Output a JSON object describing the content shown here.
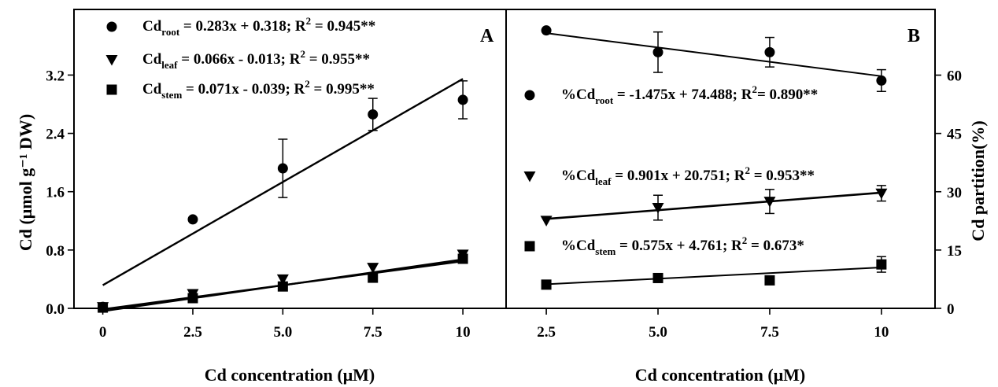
{
  "chart_data": [
    {
      "type": "scatter",
      "panel_letter": "A",
      "xlabel": "Cd concentration (μM)",
      "ylabel": "Cd (μmol g⁻¹ DW)",
      "xlim": [
        -0.8,
        11.2
      ],
      "ylim": [
        0,
        4.1
      ],
      "x_ticks": [
        0,
        2.5,
        5,
        7.5,
        10
      ],
      "x_tick_labels": [
        "0",
        "2.5",
        "5.0",
        "7.5",
        "10"
      ],
      "y_ticks": [
        0,
        0.8,
        1.6,
        2.4,
        3.2
      ],
      "y_tick_labels": [
        "0.0",
        "0.8",
        "1.6",
        "2.4",
        "3.2"
      ],
      "grid": false,
      "legend_position": "top-left",
      "series": [
        {
          "marker": "circle",
          "x": [
            0,
            2.5,
            5,
            7.5,
            10
          ],
          "y": [
            0.02,
            1.22,
            1.92,
            2.66,
            2.86
          ],
          "err": [
            0,
            0,
            0.4,
            0.22,
            0.26
          ],
          "fit": {
            "slope": 0.283,
            "intercept": 0.318
          },
          "label": {
            "pre": "Cd",
            "sub": "root",
            "post": " = 0.283x + 0.318; R",
            "sup": "2",
            "tail": " = 0.945**"
          }
        },
        {
          "marker": "triangle-down",
          "x": [
            0,
            2.5,
            5,
            7.5,
            10
          ],
          "y": [
            0.02,
            0.2,
            0.4,
            0.56,
            0.74
          ],
          "err": [
            0,
            0,
            0,
            0,
            0.05
          ],
          "fit": {
            "slope": 0.066,
            "intercept": -0.013
          },
          "label": {
            "pre": "Cd",
            "sub": "leaf",
            "post": " = 0.066x - 0.013; R",
            "sup": "2",
            "tail": " = 0.955**"
          }
        },
        {
          "marker": "square",
          "x": [
            0,
            2.5,
            5,
            7.5,
            10
          ],
          "y": [
            0.01,
            0.14,
            0.3,
            0.42,
            0.68
          ],
          "err": [
            0,
            0,
            0,
            0,
            0.04
          ],
          "fit": {
            "slope": 0.071,
            "intercept": -0.039
          },
          "label": {
            "pre": "Cd",
            "sub": "stem",
            "post": " = 0.071x - 0.039; R",
            "sup": "2",
            "tail": " = 0.995**"
          }
        }
      ]
    },
    {
      "type": "scatter",
      "panel_letter": "B",
      "xlabel": "Cd concentration (μM)",
      "ylabel": "Cd partition(%)",
      "xlim": [
        1.6,
        11.2
      ],
      "ylim": [
        0,
        76.9
      ],
      "x_ticks": [
        2.5,
        5,
        7.5,
        10
      ],
      "x_tick_labels": [
        "2.5",
        "5.0",
        "7.5",
        "10"
      ],
      "y_ticks": [
        0,
        15,
        30,
        45,
        60
      ],
      "y_tick_labels": [
        "0",
        "15",
        "30",
        "45",
        "60"
      ],
      "grid": false,
      "legend_position": "right-center",
      "series": [
        {
          "marker": "circle",
          "x": [
            2.5,
            5,
            7.5,
            10
          ],
          "y": [
            71.5,
            65.9,
            65.9,
            58.6
          ],
          "err": [
            0,
            5.2,
            3.8,
            2.8
          ],
          "fit": {
            "slope": -1.475,
            "intercept": 74.488
          },
          "label": {
            "pre": "%Cd",
            "sub": "root",
            "post": " = -1.475x + 74.488; R",
            "sup": "2",
            "tail": "= 0.890**"
          }
        },
        {
          "marker": "triangle-down",
          "x": [
            2.5,
            5,
            7.5,
            10
          ],
          "y": [
            22.6,
            25.9,
            27.5,
            29.6
          ],
          "err": [
            0,
            3.2,
            3.1,
            2.0
          ],
          "fit": {
            "slope": 0.901,
            "intercept": 20.751
          },
          "label": {
            "pre": "%Cd",
            "sub": "leaf",
            "post": " = 0.901x + 20.751; R",
            "sup": "2",
            "tail": " = 0.953**"
          }
        },
        {
          "marker": "square",
          "x": [
            2.5,
            5,
            7.5,
            10
          ],
          "y": [
            6.1,
            7.8,
            7.2,
            11.3
          ],
          "err": [
            0,
            1.0,
            0,
            2.0
          ],
          "fit": {
            "slope": 0.575,
            "intercept": 4.761
          },
          "label": {
            "pre": "%Cd",
            "sub": "stem",
            "post": " = 0.575x + 4.761; R",
            "sup": "2",
            "tail": " = 0.673*"
          }
        }
      ]
    }
  ]
}
